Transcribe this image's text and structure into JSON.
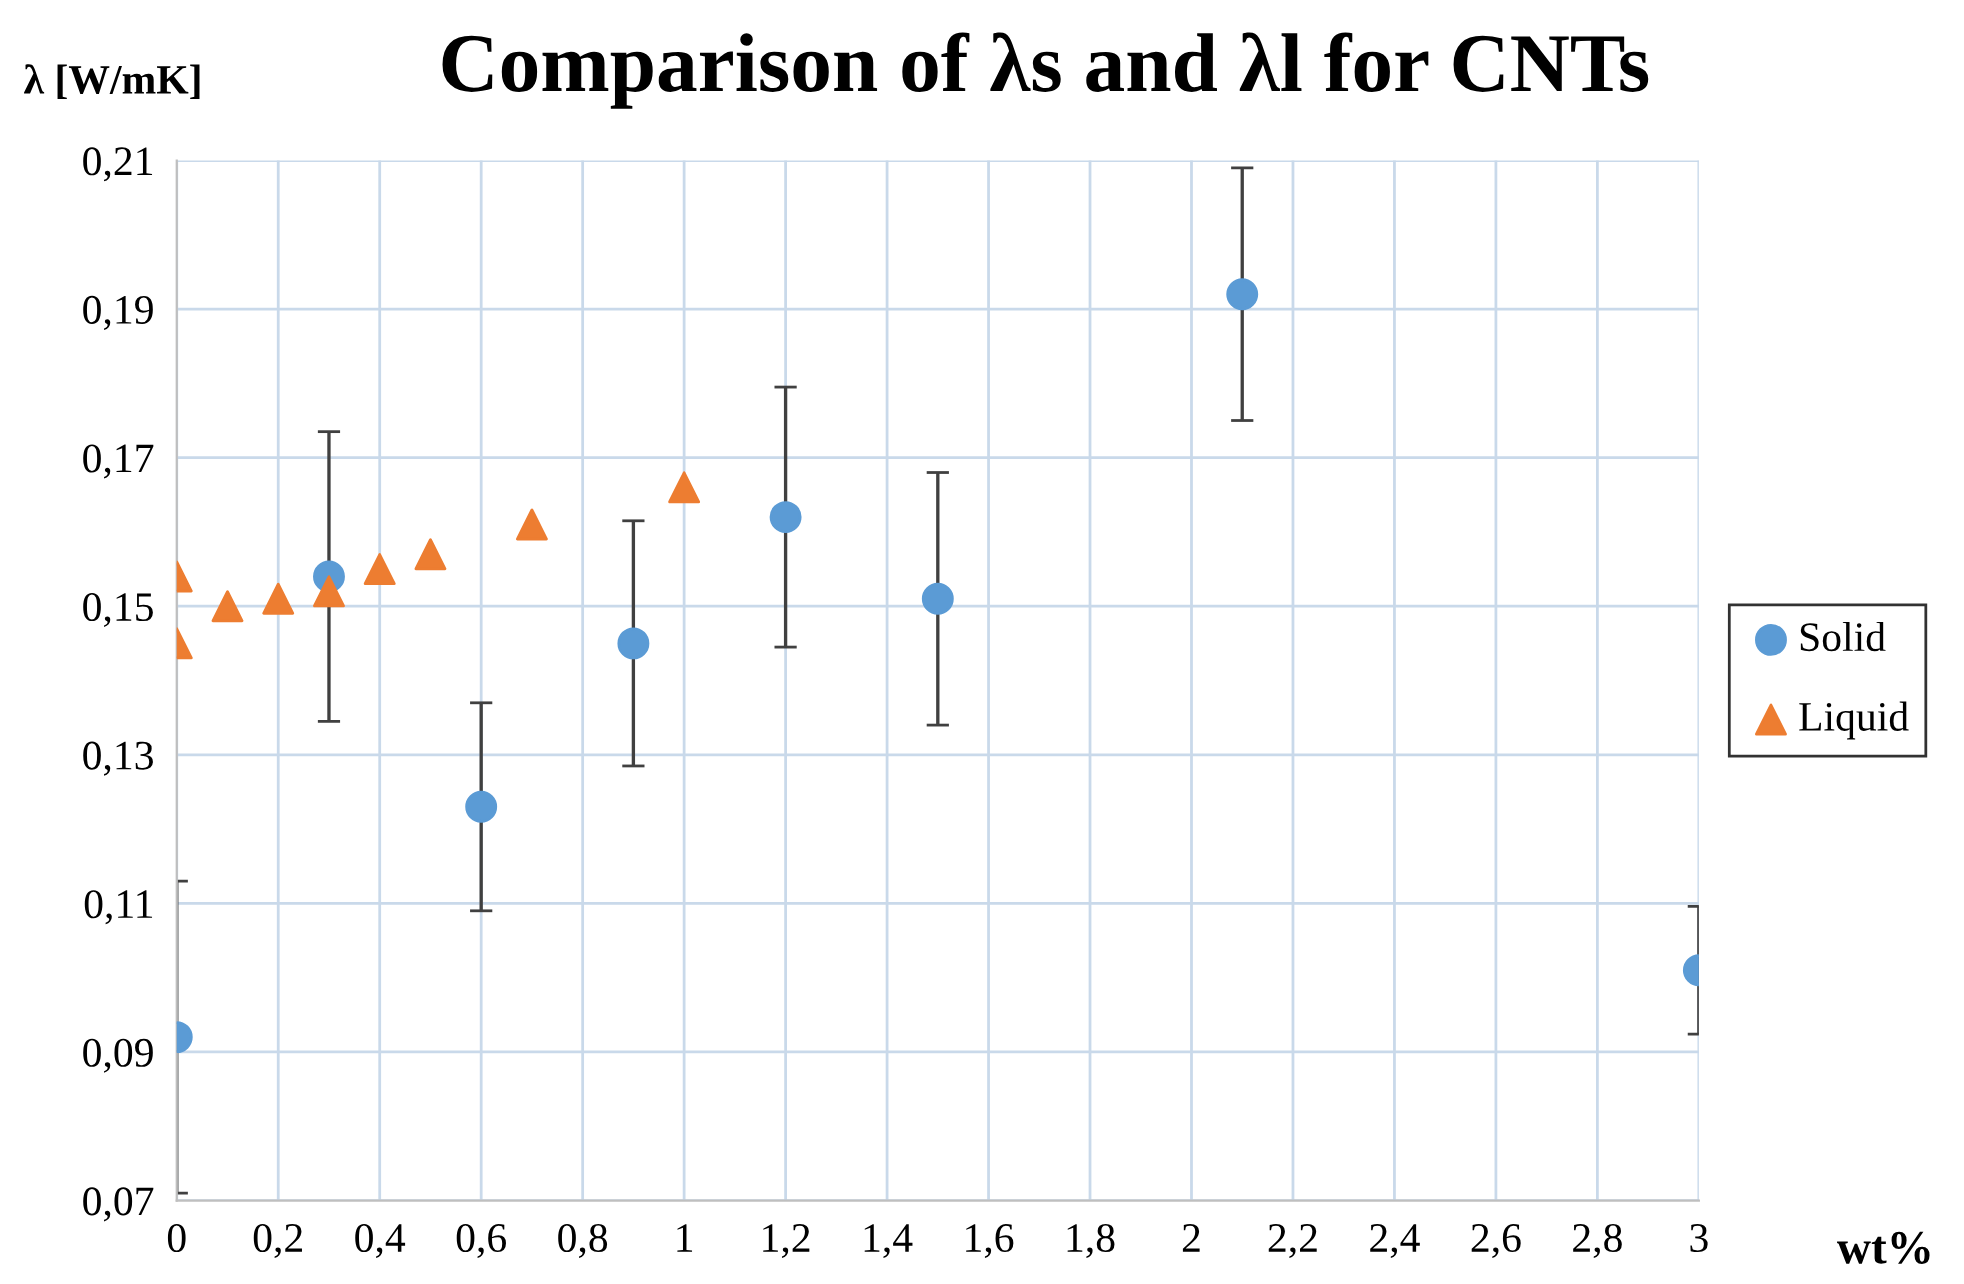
{
  "chart_data": {
    "type": "scatter",
    "title": "Comparison of λs and λl for CNTs",
    "xlabel": "wt%",
    "ylabel": "λ [W/mK]",
    "series": [
      {
        "name": "Solid",
        "color": "#5b9bd5",
        "marker": "circle",
        "x": [
          0,
          0.3,
          0.6,
          0.9,
          1.2,
          1.5,
          2.1,
          3
        ],
        "values": [
          0.092,
          0.154,
          0.123,
          0.145,
          0.162,
          0.151,
          0.192,
          0.101
        ],
        "errors": [
          0.021,
          0.0195,
          0.014,
          0.0165,
          0.0175,
          0.017,
          0.017,
          0.0086
        ]
      },
      {
        "name": "Liquid",
        "color": "#ed7d31",
        "marker": "triangle",
        "x": [
          0,
          0,
          0.1,
          0.2,
          0.3,
          0.4,
          0.5,
          0.7,
          1.0
        ],
        "values": [
          0.154,
          0.145,
          0.15,
          0.151,
          0.152,
          0.155,
          0.157,
          0.161,
          0.166
        ]
      }
    ],
    "xlim": [
      0,
      3
    ],
    "xticks": [
      0,
      {
        "value": 0.2,
        "label": "0,2"
      },
      {
        "value": 0.4,
        "label": "0,4"
      },
      {
        "value": 0.6,
        "label": "0,6"
      },
      {
        "value": 0.8,
        "label": "0,8"
      },
      1,
      {
        "value": 1.2,
        "label": "1,2"
      },
      {
        "value": 1.4,
        "label": "1,4"
      },
      {
        "value": 1.6,
        "label": "1,6"
      },
      {
        "value": 1.8,
        "label": "1,8"
      },
      2,
      {
        "value": 2.2,
        "label": "2,2"
      },
      {
        "value": 2.4,
        "label": "2,4"
      },
      {
        "value": 2.6,
        "label": "2,6"
      },
      {
        "value": 2.8,
        "label": "2,8"
      },
      3
    ],
    "ylim": [
      0.07,
      0.21
    ],
    "yticks": [
      {
        "value": 0.07,
        "label": "0,07"
      },
      {
        "value": 0.09,
        "label": "0,09"
      },
      {
        "value": 0.11,
        "label": "0,11"
      },
      {
        "value": 0.13,
        "label": "0,13"
      },
      {
        "value": 0.15,
        "label": "0,15"
      },
      {
        "value": 0.17,
        "label": "0,17"
      },
      {
        "value": 0.19,
        "label": "0,19"
      },
      {
        "value": 0.21,
        "label": "0,21"
      }
    ],
    "grid": true,
    "legend": "right"
  }
}
